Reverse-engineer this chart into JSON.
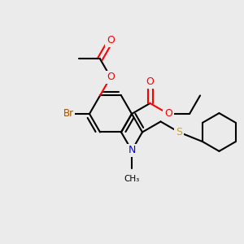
{
  "background_color": "#ebebeb",
  "bond_color": "#000000",
  "atom_colors": {
    "O": "#ff0000",
    "N": "#0000ff",
    "Br": "#a05000",
    "S": "#ccaa00",
    "C": "#000000"
  },
  "figsize": [
    3.0,
    3.0
  ],
  "dpi": 100,
  "BL": 26
}
